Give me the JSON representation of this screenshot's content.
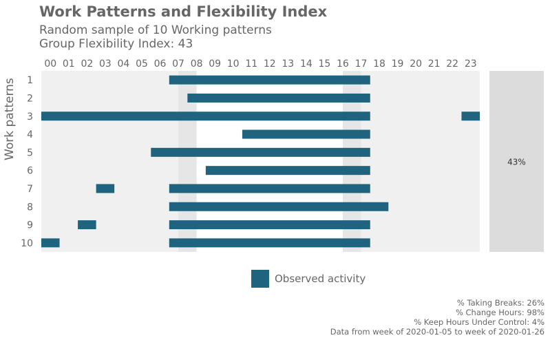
{
  "chart_data": {
    "type": "bar",
    "title": "Work Patterns and Flexibility Index",
    "subtitle_lines": [
      "Random sample of 10 Working patterns",
      "Group Flexibility Index: 43"
    ],
    "ylabel": "Work patterns",
    "hours": [
      "00",
      "01",
      "02",
      "03",
      "04",
      "05",
      "06",
      "07",
      "08",
      "09",
      "10",
      "11",
      "12",
      "13",
      "14",
      "15",
      "16",
      "17",
      "18",
      "19",
      "20",
      "21",
      "22",
      "23"
    ],
    "core_hours": [
      8,
      17
    ],
    "patterns": [
      {
        "label": "1",
        "segments": [
          [
            7,
            17
          ]
        ]
      },
      {
        "label": "2",
        "segments": [
          [
            8,
            17
          ]
        ]
      },
      {
        "label": "3",
        "segments": [
          [
            0,
            17
          ],
          [
            23,
            23
          ]
        ]
      },
      {
        "label": "4",
        "segments": [
          [
            11,
            17
          ]
        ]
      },
      {
        "label": "5",
        "segments": [
          [
            6,
            17
          ]
        ]
      },
      {
        "label": "6",
        "segments": [
          [
            9,
            17
          ]
        ]
      },
      {
        "label": "7",
        "segments": [
          [
            3,
            3
          ],
          [
            7,
            17
          ]
        ]
      },
      {
        "label": "8",
        "segments": [
          [
            7,
            18
          ]
        ]
      },
      {
        "label": "9",
        "segments": [
          [
            2,
            2
          ],
          [
            7,
            17
          ]
        ]
      },
      {
        "label": "10",
        "segments": [
          [
            0,
            0
          ],
          [
            7,
            17
          ]
        ]
      }
    ],
    "flexibility_index_label": "43%",
    "legend": "Observed activity",
    "colors": {
      "activity": "#1f637e",
      "background": "#f0f0f0",
      "core": "#e6e6e6",
      "index_panel": "#dcdcdc",
      "text": "#666666"
    }
  },
  "caption_lines": [
    "% Taking Breaks: 26%",
    "% Change Hours: 98%",
    "% Keep Hours Under Control: 4%",
    "Data from week of 2020-01-05 to week of 2020-01-26"
  ]
}
